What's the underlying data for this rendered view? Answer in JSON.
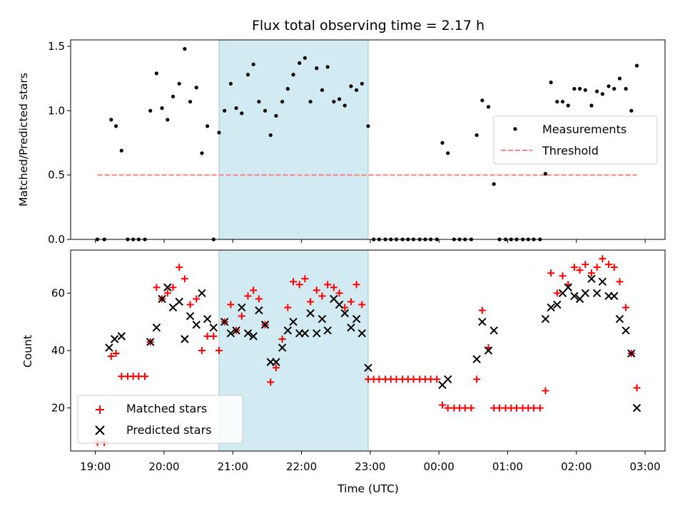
{
  "chart_data": [
    {
      "type": "scatter",
      "title": "Flux total observing time = 2.17 h",
      "xlabel": "",
      "ylabel": "Matched/Predicted stars",
      "ylim": [
        0,
        1.55
      ],
      "yticks": [
        "0.0",
        "0.5",
        "1.0",
        "1.5"
      ],
      "xlim_hours": [
        18.64,
        27.29
      ],
      "shaded_span_hours": [
        20.8,
        22.97
      ],
      "shade_color": "#add8e6",
      "legend": {
        "placement": "center-right",
        "entries": [
          "Measurements",
          "Threshold"
        ]
      },
      "threshold": {
        "name": "Threshold",
        "y": 0.5,
        "x_hours": [
          19.03,
          26.88
        ],
        "color": "#ff8080",
        "style": "dashed"
      },
      "series": [
        {
          "name": "Measurements",
          "color": "#000000",
          "marker": "dot",
          "x_hours": [
            19.03,
            19.13,
            19.23,
            19.3,
            19.38,
            19.47,
            19.55,
            19.63,
            19.72,
            19.8,
            19.89,
            19.97,
            20.05,
            20.13,
            20.22,
            20.3,
            20.38,
            20.47,
            20.55,
            20.63,
            20.72,
            20.8,
            20.88,
            20.97,
            21.05,
            21.13,
            21.22,
            21.3,
            21.38,
            21.47,
            21.55,
            21.63,
            21.72,
            21.8,
            21.88,
            21.97,
            22.05,
            22.13,
            22.22,
            22.3,
            22.38,
            22.47,
            22.55,
            22.63,
            22.72,
            22.8,
            22.88,
            22.97,
            23.05,
            23.13,
            23.22,
            23.3,
            23.38,
            23.47,
            23.55,
            23.63,
            23.72,
            23.8,
            23.88,
            23.97,
            24.05,
            24.13,
            24.22,
            24.3,
            24.38,
            24.47,
            24.55,
            24.63,
            24.72,
            24.8,
            24.88,
            24.97,
            25.05,
            25.13,
            25.22,
            25.3,
            25.38,
            25.47,
            25.55,
            25.63,
            25.72,
            25.8,
            25.88,
            25.97,
            26.05,
            26.13,
            26.22,
            26.3,
            26.38,
            26.47,
            26.55,
            26.63,
            26.72,
            26.8,
            26.88
          ],
          "y": [
            0,
            0,
            0.93,
            0.88,
            0.69,
            0,
            0,
            0,
            0,
            1.0,
            1.29,
            1.02,
            0.93,
            1.11,
            1.21,
            1.48,
            1.07,
            1.18,
            0.67,
            0.88,
            0,
            0.83,
            1.0,
            1.21,
            1.02,
            0.98,
            1.28,
            1.36,
            1.07,
            1.0,
            0.81,
            0.96,
            1.07,
            1.17,
            1.28,
            1.37,
            1.41,
            1.07,
            1.33,
            1.16,
            1.34,
            1.07,
            1.09,
            1.04,
            1.19,
            1.16,
            1.21,
            0.88,
            0,
            0,
            0,
            0,
            0,
            0,
            0,
            0,
            0,
            0,
            0,
            0,
            0.75,
            0.67,
            0,
            0,
            0,
            0,
            0.81,
            1.08,
            1.03,
            0.43,
            0,
            0,
            0,
            0,
            0,
            0,
            0,
            0,
            0.51,
            1.22,
            1.07,
            1.07,
            1.04,
            1.17,
            1.17,
            1.16,
            1.04,
            1.15,
            1.13,
            1.19,
            1.17,
            1.25,
            1.17,
            1.0,
            1.35
          ]
        }
      ]
    },
    {
      "type": "scatter",
      "title": "",
      "xlabel": "Time (UTC)",
      "ylabel": "Count",
      "ylim": [
        5,
        75
      ],
      "yticks": [
        "20",
        "40",
        "60"
      ],
      "xticks": [
        "19:00",
        "20:00",
        "21:00",
        "22:00",
        "23:00",
        "00:00",
        "01:00",
        "02:00",
        "03:00"
      ],
      "xlim_hours": [
        18.64,
        27.29
      ],
      "shaded_span_hours": [
        20.8,
        22.97
      ],
      "shade_color": "#add8e6",
      "legend": {
        "placement": "bottom-left",
        "entries": [
          "Matched stars",
          "Predicted stars"
        ]
      },
      "series": [
        {
          "name": "Matched stars",
          "color": "#ff0000",
          "marker": "plus",
          "x_hours": [
            19.03,
            19.13,
            19.23,
            19.3,
            19.38,
            19.47,
            19.55,
            19.63,
            19.72,
            19.8,
            19.89,
            19.97,
            20.05,
            20.13,
            20.22,
            20.3,
            20.38,
            20.47,
            20.55,
            20.63,
            20.72,
            20.8,
            20.88,
            20.97,
            21.05,
            21.13,
            21.22,
            21.3,
            21.38,
            21.47,
            21.55,
            21.63,
            21.72,
            21.8,
            21.88,
            21.97,
            22.05,
            22.13,
            22.22,
            22.3,
            22.38,
            22.47,
            22.55,
            22.63,
            22.72,
            22.8,
            22.88,
            22.97,
            23.05,
            23.13,
            23.22,
            23.3,
            23.38,
            23.47,
            23.55,
            23.63,
            23.72,
            23.8,
            23.88,
            23.97,
            24.05,
            24.13,
            24.22,
            24.3,
            24.38,
            24.47,
            24.55,
            24.63,
            24.72,
            24.8,
            24.88,
            24.97,
            25.05,
            25.13,
            25.22,
            25.3,
            25.38,
            25.47,
            25.55,
            25.63,
            25.72,
            25.8,
            25.88,
            25.97,
            26.05,
            26.13,
            26.22,
            26.3,
            26.38,
            26.47,
            26.55,
            26.63,
            26.72,
            26.8,
            26.88
          ],
          "y": [
            8,
            8,
            38,
            39,
            31,
            31,
            31,
            31,
            31,
            43,
            62,
            58,
            60,
            62,
            69,
            65,
            56,
            58,
            40,
            45,
            45,
            40,
            50,
            56,
            47,
            52,
            59,
            61,
            58,
            49,
            29,
            34,
            44,
            55,
            64,
            63,
            65,
            57,
            61,
            59,
            63,
            62,
            60,
            55,
            57,
            63,
            56,
            30,
            30,
            30,
            30,
            30,
            30,
            30,
            30,
            30,
            30,
            30,
            30,
            30,
            21,
            20,
            20,
            20,
            20,
            20,
            30,
            54,
            41,
            20,
            20,
            20,
            20,
            20,
            20,
            20,
            20,
            20,
            26,
            67,
            60,
            66,
            63,
            69,
            68,
            70,
            67,
            69,
            72,
            70,
            69,
            64,
            55,
            39,
            27
          ]
        },
        {
          "name": "Predicted stars",
          "color": "#000000",
          "marker": "x",
          "x_hours": [
            19.2,
            19.28,
            19.38,
            19.8,
            19.89,
            19.97,
            20.05,
            20.13,
            20.22,
            20.3,
            20.38,
            20.47,
            20.55,
            20.63,
            20.72,
            20.88,
            20.97,
            21.05,
            21.13,
            21.22,
            21.3,
            21.38,
            21.47,
            21.55,
            21.63,
            21.72,
            21.8,
            21.88,
            21.97,
            22.05,
            22.13,
            22.22,
            22.3,
            22.38,
            22.47,
            22.55,
            22.63,
            22.72,
            22.8,
            22.88,
            22.97,
            24.05,
            24.13,
            24.55,
            24.63,
            24.72,
            24.8,
            25.55,
            25.63,
            25.72,
            25.8,
            25.88,
            25.97,
            26.05,
            26.13,
            26.22,
            26.3,
            26.38,
            26.47,
            26.55,
            26.63,
            26.72,
            26.8,
            26.88
          ],
          "y": [
            41,
            44,
            45,
            43,
            48,
            58,
            62,
            55,
            57,
            44,
            52,
            49,
            60,
            51,
            48,
            50,
            46,
            47,
            55,
            46,
            45,
            54,
            49,
            36,
            36,
            41,
            47,
            50,
            46,
            46,
            53,
            46,
            51,
            47,
            58,
            56,
            53,
            48,
            51,
            46,
            34,
            28,
            30,
            37,
            50,
            40,
            47,
            51,
            55,
            56,
            60,
            62,
            59,
            58,
            60,
            65,
            60,
            64,
            59,
            59,
            51,
            47,
            39,
            20
          ]
        }
      ]
    }
  ]
}
